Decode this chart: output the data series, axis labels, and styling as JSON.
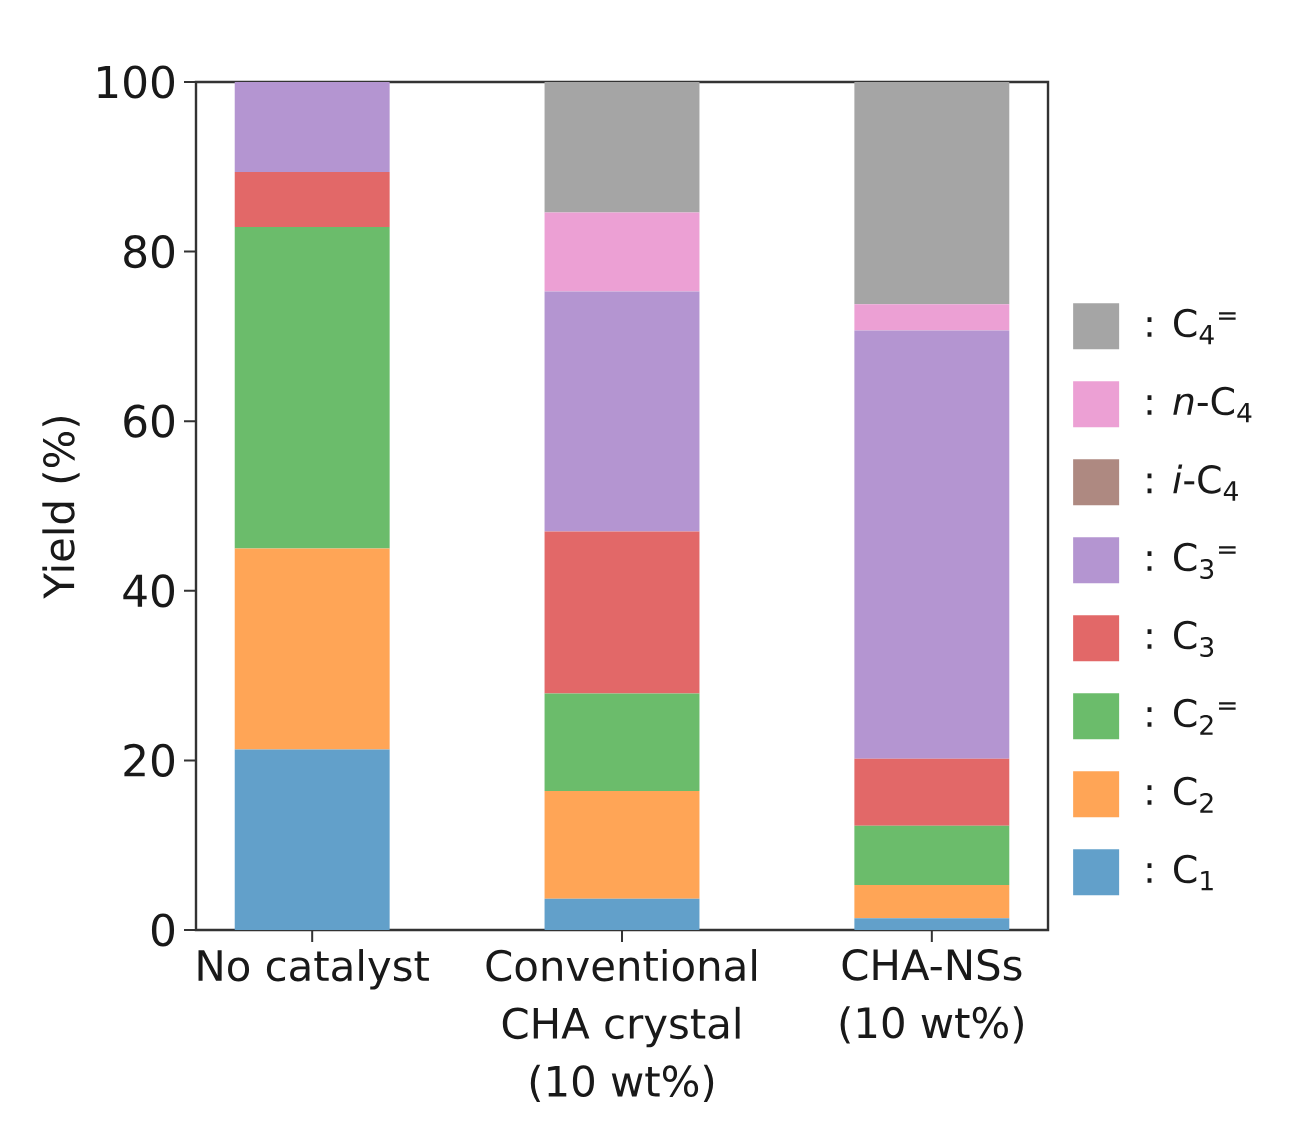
{
  "chart_data": {
    "type": "bar",
    "stacked": true,
    "ylabel": "Yield (%)",
    "categories": [
      "No catalyst",
      "Conventional CHA crystal (10 wt%)",
      "CHA-NSs (10 wt%)"
    ],
    "series": [
      {
        "name": ": C$_{1}$",
        "color": "#62a0ca",
        "values": [
          21.3,
          3.7,
          1.4
        ]
      },
      {
        "name": ": C$_{2}$",
        "color": "#ffa556",
        "values": [
          23.7,
          12.7,
          3.9
        ]
      },
      {
        "name": ": C$_{2}$$^{=}$",
        "color": "#6bbc6b",
        "values": [
          37.9,
          11.5,
          7.0
        ]
      },
      {
        "name": ": C$_{3}$",
        "color": "#e26868",
        "values": [
          6.5,
          19.1,
          7.9
        ]
      },
      {
        "name": ": C$_{3}$$^{=}$",
        "color": "#b495d1",
        "values": [
          10.6,
          28.3,
          50.5
        ]
      },
      {
        "name": ": *i*-C$_{4}$",
        "color": "#ae8981",
        "values": [
          0,
          0,
          0
        ]
      },
      {
        "name": ": *n*-C$_{4}$",
        "color": "#eca0d4",
        "values": [
          0,
          9.3,
          3.1
        ]
      },
      {
        "name": ": C$_{4}$$^{=}$",
        "color": "#a5a5a5",
        "values": [
          0,
          15.4,
          26.2
        ]
      }
    ],
    "ylim": [
      0,
      100
    ],
    "yticks": [
      0,
      20,
      40,
      60,
      80,
      100
    ],
    "legend": "right"
  }
}
